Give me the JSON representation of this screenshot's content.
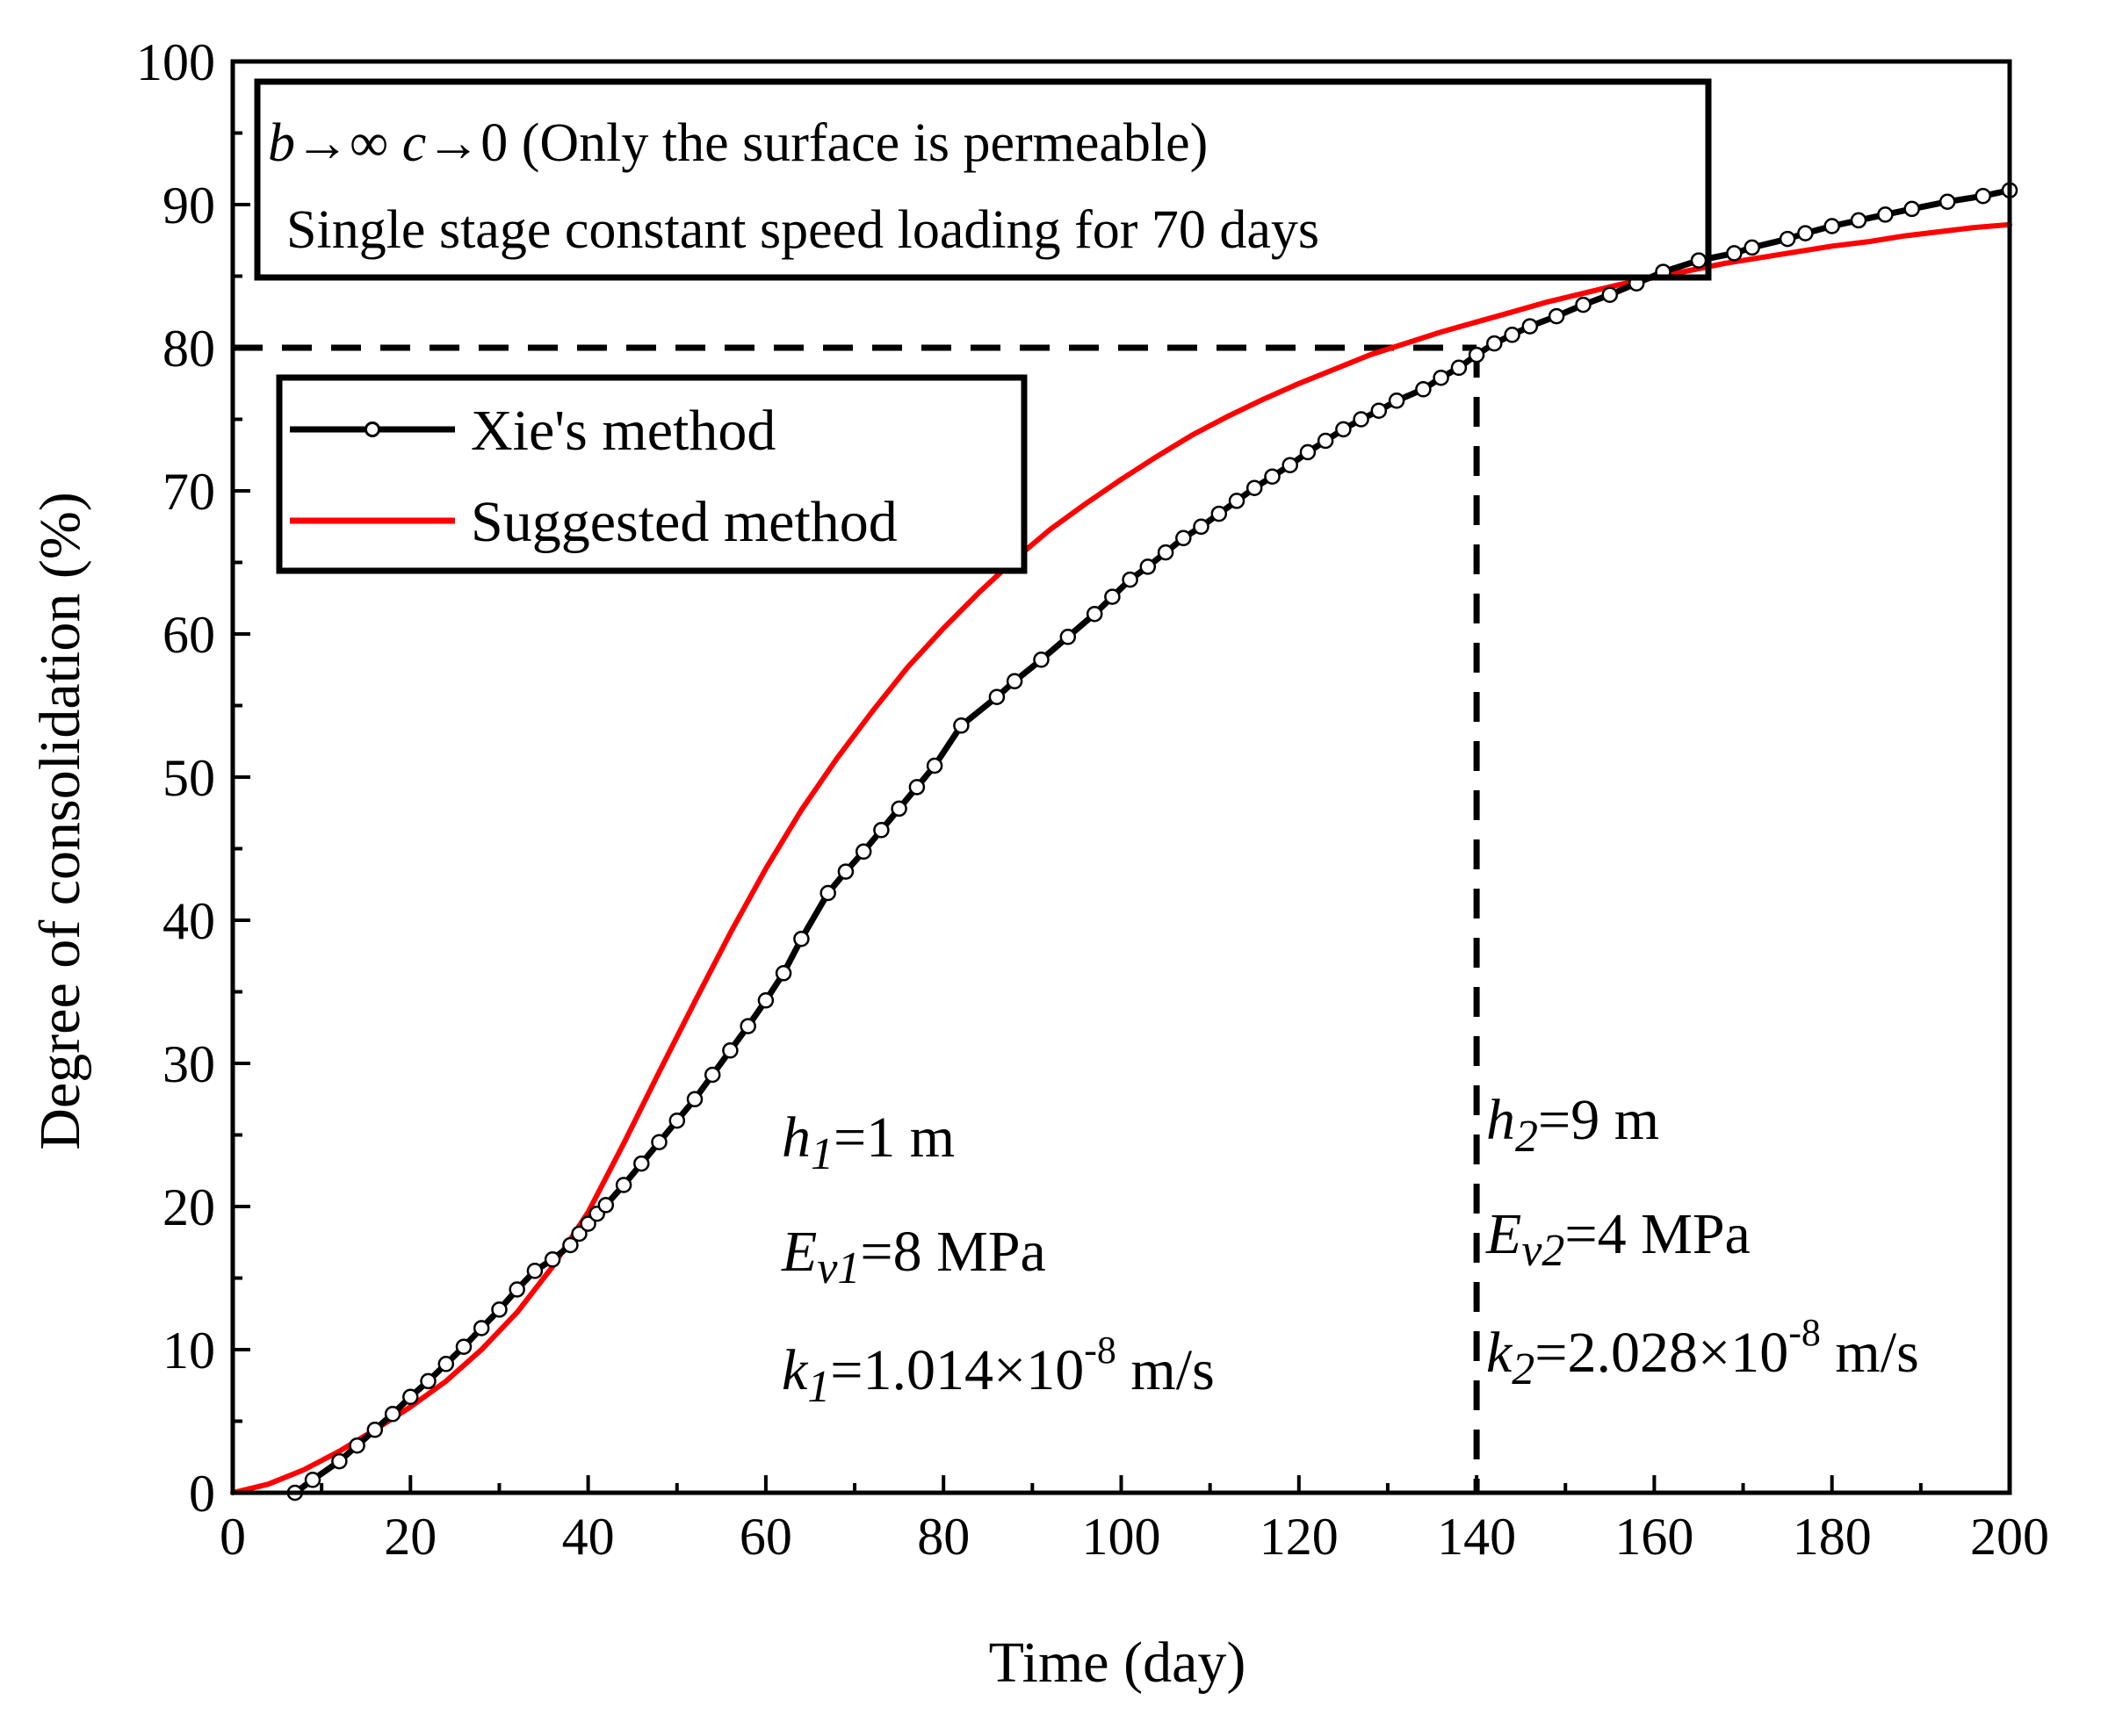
{
  "chart_data": {
    "type": "line",
    "title": "",
    "xlabel": "Time (day)",
    "ylabel": "Degree of consolidation (%)",
    "xlim": [
      0,
      200
    ],
    "ylim": [
      0,
      100
    ],
    "x_ticks": [
      0,
      20,
      40,
      60,
      80,
      100,
      120,
      140,
      160,
      180,
      200
    ],
    "y_ticks": [
      0,
      10,
      20,
      30,
      40,
      50,
      60,
      70,
      80,
      90,
      100
    ],
    "x_tick_labels": [
      "0",
      "20",
      "40",
      "60",
      "80",
      "100",
      "120",
      "140",
      "160",
      "180",
      "200"
    ],
    "y_tick_labels": [
      "0",
      "10",
      "20",
      "30",
      "40",
      "50",
      "60",
      "70",
      "80",
      "90",
      "100"
    ],
    "grid": false,
    "legend_position": "upper-left",
    "series": [
      {
        "name": "Xie's method",
        "color": "#000000",
        "marker": "open-circle",
        "x": [
          7,
          9,
          12,
          14,
          16,
          18,
          20,
          22,
          24,
          26,
          28,
          30,
          32,
          34,
          36,
          38,
          39,
          40,
          41,
          42,
          44,
          46,
          48,
          50,
          52,
          54,
          56,
          58,
          60,
          62,
          64,
          67,
          69,
          71,
          73,
          75,
          77,
          79,
          82,
          86,
          88,
          91,
          94,
          97,
          99,
          101,
          103,
          105,
          107,
          109,
          111,
          113,
          115,
          117,
          119,
          121,
          123,
          125,
          127,
          129,
          131,
          134,
          136,
          138,
          140,
          142,
          144,
          146,
          149,
          152,
          155,
          158,
          161,
          165,
          169,
          171,
          175,
          177,
          180,
          183,
          186,
          189,
          193,
          197,
          200
        ],
        "y": [
          0,
          0.9,
          2.2,
          3.3,
          4.4,
          5.5,
          6.7,
          7.8,
          9.0,
          10.2,
          11.5,
          12.8,
          14.2,
          15.5,
          16.3,
          17.3,
          18.1,
          18.8,
          19.5,
          20.1,
          21.5,
          23.0,
          24.5,
          26.0,
          27.5,
          29.2,
          30.9,
          32.6,
          34.4,
          36.3,
          38.7,
          41.9,
          43.4,
          44.8,
          46.3,
          47.8,
          49.3,
          50.8,
          53.6,
          55.6,
          56.7,
          58.2,
          59.8,
          61.4,
          62.6,
          63.8,
          64.7,
          65.7,
          66.7,
          67.5,
          68.4,
          69.3,
          70.2,
          71.0,
          71.8,
          72.7,
          73.5,
          74.3,
          75.0,
          75.6,
          76.3,
          77.1,
          77.9,
          78.6,
          79.5,
          80.3,
          80.9,
          81.5,
          82.2,
          83.0,
          83.7,
          84.5,
          85.3,
          86.1,
          86.6,
          87.0,
          87.6,
          88.0,
          88.5,
          88.9,
          89.3,
          89.7,
          90.2,
          90.6,
          91.0
        ]
      },
      {
        "name": "Suggested method",
        "color": "#ff0000",
        "marker": "none",
        "x": [
          0,
          4,
          8,
          12,
          16,
          20,
          24,
          28,
          32,
          36,
          40,
          44,
          48,
          52,
          56,
          60,
          64,
          68,
          72,
          76,
          80,
          84,
          88,
          92,
          96,
          100,
          104,
          108,
          112,
          116,
          120,
          124,
          128,
          132,
          136,
          140,
          144,
          148,
          152,
          156,
          160,
          164,
          168,
          172,
          176,
          180,
          184,
          188,
          192,
          196,
          200
        ],
        "y": [
          0,
          0.6,
          1.6,
          2.9,
          4.4,
          6.0,
          7.8,
          10.0,
          12.6,
          15.8,
          19.6,
          24.4,
          29.4,
          34.3,
          39.1,
          43.6,
          47.7,
          51.3,
          54.6,
          57.7,
          60.4,
          62.9,
          65.2,
          67.3,
          69.1,
          70.8,
          72.4,
          73.9,
          75.2,
          76.4,
          77.5,
          78.5,
          79.5,
          80.3,
          81.1,
          81.8,
          82.5,
          83.2,
          83.8,
          84.4,
          84.9,
          85.4,
          85.9,
          86.3,
          86.7,
          87.1,
          87.4,
          87.8,
          88.1,
          88.4,
          88.6
        ]
      }
    ],
    "reference_lines": {
      "horizontal_y": 80,
      "vertical_x": 140,
      "style": "dashed"
    },
    "annotations": {
      "box_line1": {
        "b": "b",
        "arrow1": "→∞ ",
        "c": "c",
        "arrow2": "→0 (Only the surface is permeable)"
      },
      "box_line2": "Single stage constant speed loading for 70 days",
      "layer1": {
        "h": "h",
        "h_sub": "1",
        "h_val": "=1 m",
        "E": "E",
        "E_sub": "v1",
        "E_val": "=8 MPa",
        "k": "k",
        "k_sub": "1",
        "k_val": "=1.014×10",
        "k_exp": "-8",
        "k_unit": " m/s"
      },
      "layer2": {
        "h": "h",
        "h_sub": "2",
        "h_val": "=9 m",
        "E": "E",
        "E_sub": "v2",
        "E_val": "=4 MPa",
        "k": "k",
        "k_sub": "2",
        "k_val": "=2.028×10",
        "k_exp": "-8",
        "k_unit": " m/s"
      }
    }
  }
}
